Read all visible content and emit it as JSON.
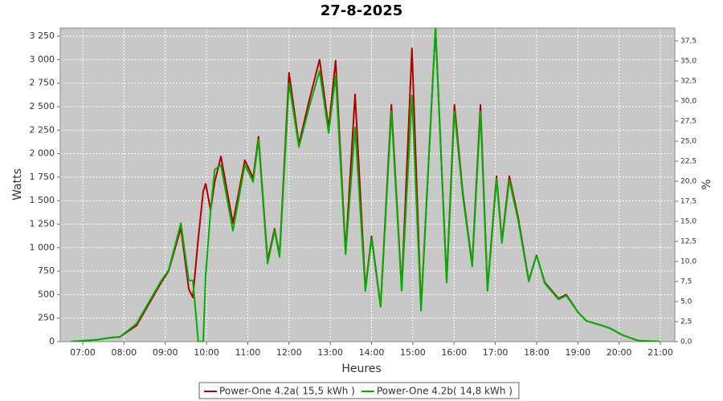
{
  "chart_data": {
    "type": "line",
    "title": "27-8-2025",
    "xlabel": "Heures",
    "ylabel": "Watts",
    "y2label": "%",
    "x": [
      6.71,
      7.33,
      7.72,
      7.9,
      8.3,
      8.89,
      9.08,
      9.38,
      9.57,
      9.67,
      9.8,
      9.92,
      9.98,
      10.1,
      10.2,
      10.35,
      10.64,
      10.93,
      11.13,
      11.26,
      11.48,
      11.65,
      11.77,
      12.0,
      12.24,
      12.49,
      12.74,
      12.96,
      13.13,
      13.37,
      13.6,
      13.85,
      14.0,
      14.22,
      14.48,
      14.73,
      14.98,
      15.2,
      15.55,
      15.82,
      16.01,
      16.21,
      16.44,
      16.64,
      16.81,
      17.03,
      17.16,
      17.34,
      17.55,
      17.81,
      18.0,
      18.2,
      18.53,
      18.72,
      19.01,
      19.21,
      19.6,
      19.79,
      20.08,
      20.47,
      21.0
    ],
    "series": [
      {
        "name": "Power-One 4.2a( 15,5 kWh )",
        "color": "#b00000",
        "values": [
          0,
          20,
          45,
          50,
          170,
          620,
          750,
          1210,
          560,
          470,
          1100,
          1600,
          1680,
          1400,
          1700,
          1970,
          1260,
          1930,
          1740,
          2180,
          860,
          1200,
          920,
          2860,
          2100,
          2570,
          3000,
          2270,
          2990,
          950,
          2630,
          560,
          1120,
          380,
          2520,
          560,
          3120,
          350,
          3336,
          650,
          2520,
          1590,
          820,
          2520,
          560,
          1760,
          1070,
          1760,
          1330,
          650,
          920,
          630,
          460,
          500,
          310,
          220,
          170,
          140,
          70,
          10,
          0
        ]
      },
      {
        "name": "Power-One 4.2b( 14,8 kWh )",
        "color": "#00b000",
        "values": [
          0,
          20,
          45,
          50,
          190,
          640,
          760,
          1260,
          650,
          650,
          0,
          0,
          700,
          1400,
          1830,
          1880,
          1180,
          1880,
          1700,
          2150,
          830,
          1180,
          900,
          2750,
          2070,
          2500,
          2880,
          2220,
          2830,
          930,
          2280,
          540,
          1100,
          370,
          2450,
          540,
          2620,
          330,
          3336,
          630,
          2450,
          1560,
          800,
          2450,
          540,
          1730,
          1050,
          1720,
          1300,
          640,
          920,
          620,
          450,
          490,
          310,
          220,
          170,
          140,
          70,
          10,
          0
        ]
      }
    ],
    "xlim": [
      6.455,
      21.35
    ],
    "xticks": [
      {
        "value": 7,
        "label": "07:00"
      },
      {
        "value": 8,
        "label": "08:00"
      },
      {
        "value": 9,
        "label": "09:00"
      },
      {
        "value": 10,
        "label": "10:00"
      },
      {
        "value": 11,
        "label": "11:00"
      },
      {
        "value": 12,
        "label": "12:00"
      },
      {
        "value": 13,
        "label": "13:00"
      },
      {
        "value": 14,
        "label": "14:00"
      },
      {
        "value": 15,
        "label": "15:00"
      },
      {
        "value": 16,
        "label": "16:00"
      },
      {
        "value": 17,
        "label": "17:00"
      },
      {
        "value": 18,
        "label": "18:00"
      },
      {
        "value": 19,
        "label": "19:00"
      },
      {
        "value": 20,
        "label": "20:00"
      },
      {
        "value": 21,
        "label": "21:00"
      }
    ],
    "ylim": [
      0,
      3336
    ],
    "yticks": [
      0,
      250,
      500,
      750,
      {
        "value": 1000,
        "label": "1 000"
      },
      {
        "value": 1250,
        "label": "1 250"
      },
      {
        "value": 1500,
        "label": "1 500"
      },
      {
        "value": 1750,
        "label": "1 750"
      },
      {
        "value": 2000,
        "label": "2 000"
      },
      {
        "value": 2250,
        "label": "2 250"
      },
      {
        "value": 2500,
        "label": "2 500"
      },
      {
        "value": 2750,
        "label": "2 750"
      },
      {
        "value": 3000,
        "label": "3 000"
      },
      {
        "value": 3250,
        "label": "3 250"
      }
    ],
    "y2lim": [
      0,
      39.1
    ],
    "y2ticks": [
      {
        "value": 0,
        "label": "0,0"
      },
      {
        "value": 2.5,
        "label": "2,5"
      },
      {
        "value": 5,
        "label": "5,0"
      },
      {
        "value": 7.5,
        "label": "7,5"
      },
      {
        "value": 10,
        "label": "10,0"
      },
      {
        "value": 12.5,
        "label": "12,5"
      },
      {
        "value": 15,
        "label": "15,0"
      },
      {
        "value": 17.5,
        "label": "17,5"
      },
      {
        "value": 20,
        "label": "20,0"
      },
      {
        "value": 22.5,
        "label": "22,5"
      },
      {
        "value": 25,
        "label": "25,0"
      },
      {
        "value": 27.5,
        "label": "27,5"
      },
      {
        "value": 30,
        "label": "30,0"
      },
      {
        "value": 32.5,
        "label": "32,5"
      },
      {
        "value": 35,
        "label": "35,0"
      },
      {
        "value": 37.5,
        "label": "37,5"
      }
    ],
    "grid": true,
    "background": "#c8c8c8"
  }
}
